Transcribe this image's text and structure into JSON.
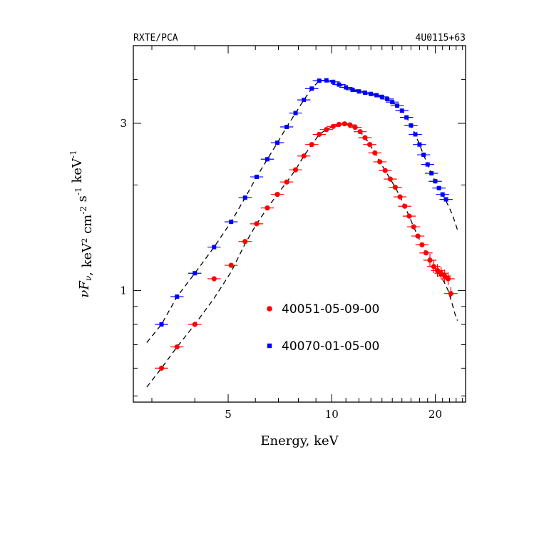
{
  "chart_data": {
    "type": "scatter",
    "corner_left": "RXTE/PCA",
    "corner_right": "4U0115+63",
    "xlabel": "Energy, keV",
    "ylabel_parts": [
      "νF",
      "ν",
      ", keV² cm",
      "-2",
      " s",
      "-1",
      " keV",
      "-1"
    ],
    "x_scale": "log",
    "y_scale": "log",
    "xlim": [
      2.65,
      24.5
    ],
    "ylim": [
      0.48,
      5.0
    ],
    "x_ticks": [
      5,
      10,
      20
    ],
    "y_ticks": [
      1,
      3
    ],
    "legend_placement": "lower-right",
    "series": [
      {
        "name": "40051-05-09-00",
        "marker": "circle",
        "color": "#ff0000",
        "points": [
          [
            3.2,
            0.6
          ],
          [
            3.55,
            0.69
          ],
          [
            4.0,
            0.8
          ],
          [
            4.55,
            1.08
          ],
          [
            5.1,
            1.18
          ],
          [
            5.6,
            1.38
          ],
          [
            6.05,
            1.55
          ],
          [
            6.5,
            1.72
          ],
          [
            6.95,
            1.88
          ],
          [
            7.4,
            2.04
          ],
          [
            7.85,
            2.21
          ],
          [
            8.3,
            2.42
          ],
          [
            8.75,
            2.61
          ],
          [
            9.2,
            2.79
          ],
          [
            9.65,
            2.88
          ],
          [
            10.1,
            2.94
          ],
          [
            10.5,
            2.98
          ],
          [
            10.9,
            2.99
          ],
          [
            11.3,
            2.97
          ],
          [
            11.7,
            2.92
          ],
          [
            12.1,
            2.84
          ],
          [
            12.5,
            2.73
          ],
          [
            12.9,
            2.61
          ],
          [
            13.35,
            2.47
          ],
          [
            13.8,
            2.33
          ],
          [
            14.3,
            2.2
          ],
          [
            14.8,
            2.08
          ],
          [
            15.3,
            1.97
          ],
          [
            15.8,
            1.85
          ],
          [
            16.3,
            1.74
          ],
          [
            16.8,
            1.63
          ],
          [
            17.3,
            1.52
          ],
          [
            17.8,
            1.43
          ],
          [
            18.3,
            1.35
          ],
          [
            18.8,
            1.28
          ],
          [
            19.3,
            1.22
          ],
          [
            19.8,
            1.17
          ],
          [
            20.3,
            1.14
          ],
          [
            20.8,
            1.12
          ],
          [
            21.3,
            1.1
          ],
          [
            21.8,
            1.08
          ],
          [
            22.2,
            0.98
          ]
        ]
      },
      {
        "name": "40070-01-05-00",
        "marker": "square",
        "color": "#0000ff",
        "points": [
          [
            3.2,
            0.8
          ],
          [
            3.55,
            0.96
          ],
          [
            4.0,
            1.12
          ],
          [
            4.55,
            1.33
          ],
          [
            5.1,
            1.57
          ],
          [
            5.6,
            1.84
          ],
          [
            6.05,
            2.11
          ],
          [
            6.5,
            2.37
          ],
          [
            6.95,
            2.64
          ],
          [
            7.4,
            2.93
          ],
          [
            7.85,
            3.21
          ],
          [
            8.3,
            3.5
          ],
          [
            8.75,
            3.77
          ],
          [
            9.2,
            3.97
          ],
          [
            9.65,
            3.98
          ],
          [
            10.1,
            3.94
          ],
          [
            10.5,
            3.87
          ],
          [
            11.0,
            3.8
          ],
          [
            11.5,
            3.74
          ],
          [
            12.0,
            3.7
          ],
          [
            12.5,
            3.67
          ],
          [
            13.0,
            3.64
          ],
          [
            13.5,
            3.61
          ],
          [
            14.0,
            3.57
          ],
          [
            14.5,
            3.52
          ],
          [
            15.0,
            3.45
          ],
          [
            15.5,
            3.37
          ],
          [
            16.0,
            3.26
          ],
          [
            16.5,
            3.12
          ],
          [
            17.0,
            2.96
          ],
          [
            17.5,
            2.79
          ],
          [
            18.0,
            2.61
          ],
          [
            18.5,
            2.44
          ],
          [
            19.0,
            2.29
          ],
          [
            19.5,
            2.16
          ],
          [
            20.0,
            2.05
          ],
          [
            20.5,
            1.96
          ],
          [
            21.0,
            1.88
          ],
          [
            21.5,
            1.82
          ]
        ]
      }
    ],
    "model_curves": [
      {
        "for_series": "40051-05-09-00",
        "style": "dashed",
        "points": [
          [
            2.9,
            0.53
          ],
          [
            3.2,
            0.6
          ],
          [
            3.55,
            0.69
          ],
          [
            4.0,
            0.8
          ],
          [
            4.55,
            0.95
          ],
          [
            5.1,
            1.13
          ],
          [
            5.6,
            1.36
          ],
          [
            6.05,
            1.55
          ],
          [
            6.5,
            1.72
          ],
          [
            6.95,
            1.88
          ],
          [
            7.4,
            2.04
          ],
          [
            7.85,
            2.21
          ],
          [
            8.3,
            2.42
          ],
          [
            8.75,
            2.61
          ],
          [
            9.2,
            2.79
          ],
          [
            9.65,
            2.88
          ],
          [
            10.1,
            2.94
          ],
          [
            10.5,
            2.98
          ],
          [
            10.9,
            2.99
          ],
          [
            11.3,
            2.97
          ],
          [
            11.7,
            2.92
          ],
          [
            12.1,
            2.84
          ],
          [
            12.5,
            2.73
          ],
          [
            12.9,
            2.61
          ],
          [
            13.35,
            2.47
          ],
          [
            13.8,
            2.33
          ],
          [
            14.3,
            2.2
          ],
          [
            14.8,
            2.08
          ],
          [
            15.3,
            1.97
          ],
          [
            15.8,
            1.85
          ],
          [
            16.3,
            1.74
          ],
          [
            16.8,
            1.63
          ],
          [
            17.3,
            1.52
          ],
          [
            17.8,
            1.43
          ],
          [
            18.3,
            1.35
          ],
          [
            18.8,
            1.28
          ],
          [
            19.3,
            1.22
          ],
          [
            19.8,
            1.17
          ],
          [
            20.3,
            1.13
          ],
          [
            20.8,
            1.09
          ],
          [
            21.3,
            1.05
          ],
          [
            21.8,
            1.0
          ],
          [
            22.3,
            0.93
          ],
          [
            22.8,
            0.86
          ],
          [
            23.2,
            0.82
          ]
        ]
      },
      {
        "for_series": "40070-01-05-00",
        "style": "dashed",
        "points": [
          [
            2.9,
            0.71
          ],
          [
            3.2,
            0.8
          ],
          [
            3.55,
            0.96
          ],
          [
            4.0,
            1.12
          ],
          [
            4.55,
            1.33
          ],
          [
            5.1,
            1.57
          ],
          [
            5.6,
            1.84
          ],
          [
            6.05,
            2.11
          ],
          [
            6.5,
            2.37
          ],
          [
            6.95,
            2.64
          ],
          [
            7.4,
            2.93
          ],
          [
            7.85,
            3.21
          ],
          [
            8.3,
            3.5
          ],
          [
            8.75,
            3.77
          ],
          [
            9.2,
            3.97
          ],
          [
            9.65,
            3.98
          ],
          [
            10.1,
            3.94
          ],
          [
            10.5,
            3.87
          ],
          [
            11.0,
            3.8
          ],
          [
            11.5,
            3.74
          ],
          [
            12.0,
            3.7
          ],
          [
            12.5,
            3.67
          ],
          [
            13.0,
            3.64
          ],
          [
            13.5,
            3.61
          ],
          [
            14.0,
            3.57
          ],
          [
            14.5,
            3.52
          ],
          [
            15.0,
            3.45
          ],
          [
            15.5,
            3.37
          ],
          [
            16.0,
            3.26
          ],
          [
            16.5,
            3.12
          ],
          [
            17.0,
            2.96
          ],
          [
            17.5,
            2.79
          ],
          [
            18.0,
            2.61
          ],
          [
            18.5,
            2.44
          ],
          [
            19.0,
            2.29
          ],
          [
            19.5,
            2.16
          ],
          [
            20.0,
            2.05
          ],
          [
            20.5,
            1.96
          ],
          [
            21.0,
            1.88
          ],
          [
            21.5,
            1.8
          ],
          [
            22.0,
            1.72
          ],
          [
            22.5,
            1.63
          ],
          [
            23.0,
            1.53
          ],
          [
            23.3,
            1.47
          ]
        ]
      }
    ]
  }
}
